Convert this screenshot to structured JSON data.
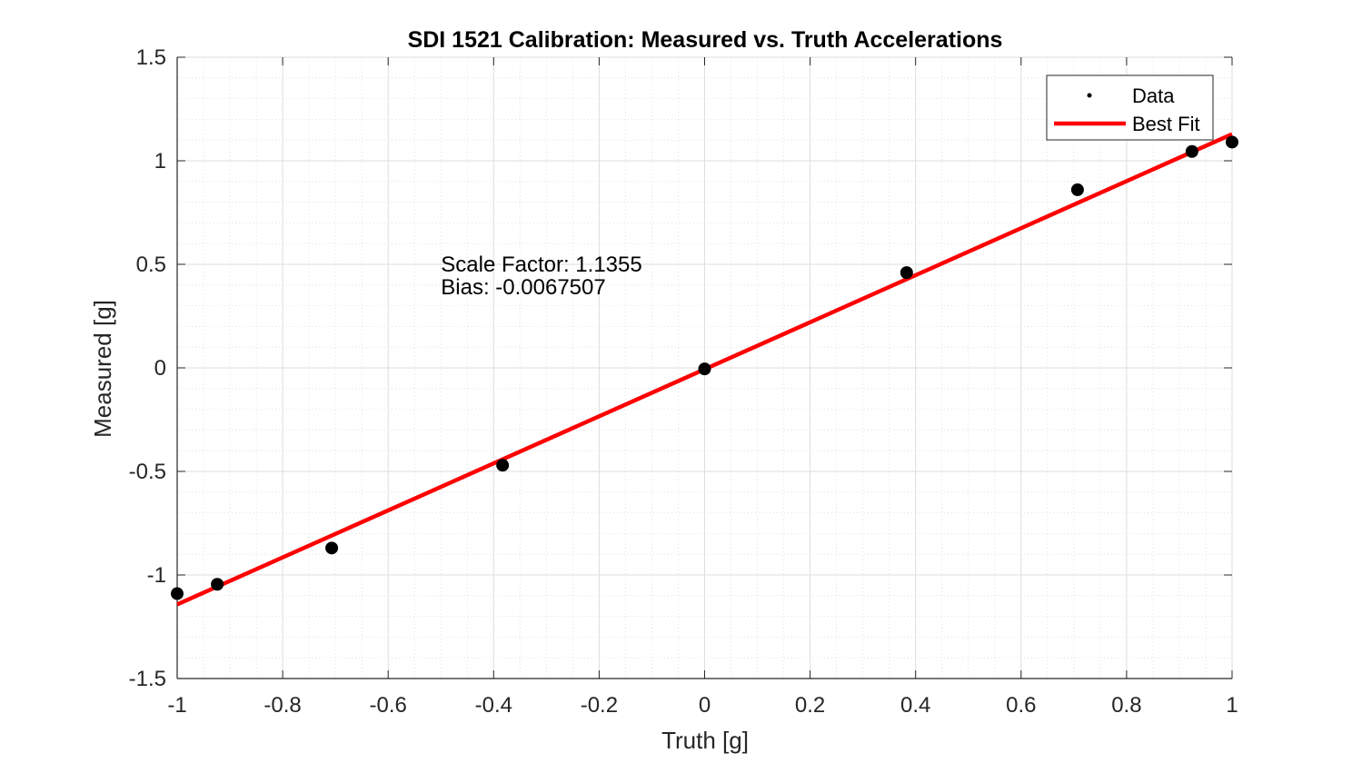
{
  "chart_data": {
    "type": "scatter",
    "title": "SDI 1521 Calibration: Measured vs. Truth Accelerations",
    "xlabel": "Truth [g]",
    "ylabel": "Measured [g]",
    "xlim": [
      -1,
      1
    ],
    "ylim": [
      -1.5,
      1.5
    ],
    "x_ticks": [
      -1,
      -0.8,
      -0.6,
      -0.4,
      -0.2,
      0,
      0.2,
      0.4,
      0.6,
      0.8,
      1
    ],
    "x_tick_labels": [
      "-1",
      "-0.8",
      "-0.6",
      "-0.4",
      "-0.2",
      "0",
      "0.2",
      "0.4",
      "0.6",
      "0.8",
      "1"
    ],
    "y_ticks": [
      -1.5,
      -1,
      -0.5,
      0,
      0.5,
      1,
      1.5
    ],
    "y_tick_labels": [
      "-1.5",
      "-1",
      "-0.5",
      "0",
      "0.5",
      "1",
      "1.5"
    ],
    "grid": true,
    "minor_grid": true,
    "legend_position": "top-right",
    "series": [
      {
        "name": "Data",
        "kind": "scatter",
        "color": "#000000",
        "x": [
          -1,
          -0.924,
          -0.707,
          -0.383,
          0,
          0.383,
          0.707,
          0.924,
          1
        ],
        "y": [
          -1.09,
          -1.045,
          -0.87,
          -0.47,
          -0.005,
          0.46,
          0.86,
          1.045,
          1.09
        ]
      },
      {
        "name": "Best Fit",
        "kind": "line",
        "color": "#ff0000",
        "x": [
          -1,
          1
        ],
        "y": [
          -1.1423,
          1.1287
        ]
      }
    ],
    "annotations": [
      {
        "text": "Scale Factor: 1.1355",
        "x": -0.5,
        "y": 0.5
      },
      {
        "text": "Bias: -0.0067507",
        "x": -0.5,
        "y": 0.39
      }
    ]
  }
}
